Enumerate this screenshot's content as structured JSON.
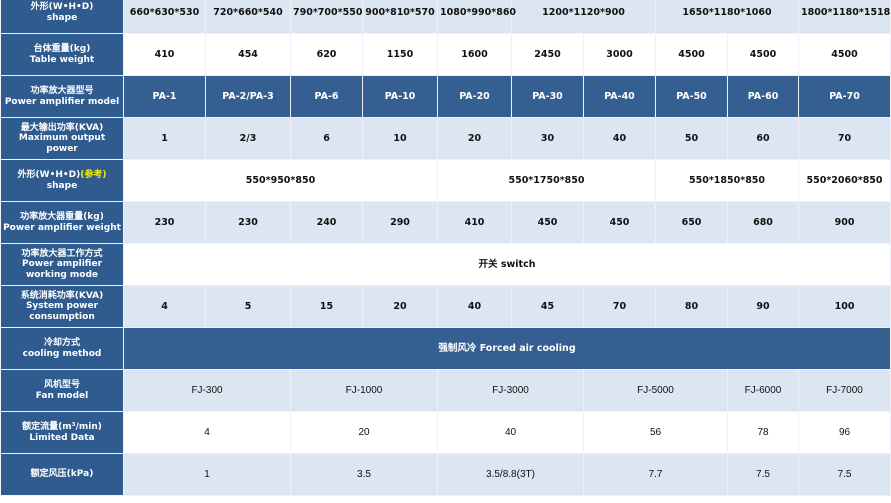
{
  "rows": [
    {
      "label_cn": "外形(W•H•D)",
      "label_en": "shape",
      "style": "light",
      "cells": [
        {
          "text": "660*630*530",
          "span": 1
        },
        {
          "text": "720*660*540",
          "span": 1
        },
        {
          "text": "790*700*550",
          "span": 1
        },
        {
          "text": "900*810*570",
          "span": 1
        },
        {
          "text": "1080*990*860",
          "span": 1
        },
        {
          "text": "1200*1120*900",
          "span": 2
        },
        {
          "text": "1650*1180*1060",
          "span": 2
        },
        {
          "text": "1800*1180*1518",
          "span": 1
        }
      ]
    },
    {
      "label_cn": "台体重量(kg)",
      "label_en": "Table weight",
      "style": "white",
      "cells": [
        {
          "text": "410",
          "span": 1
        },
        {
          "text": "454",
          "span": 1
        },
        {
          "text": "620",
          "span": 1
        },
        {
          "text": "1150",
          "span": 1
        },
        {
          "text": "1600",
          "span": 1
        },
        {
          "text": "2450",
          "span": 1
        },
        {
          "text": "3000",
          "span": 1
        },
        {
          "text": "4500",
          "span": 1
        },
        {
          "text": "4500",
          "span": 1
        },
        {
          "text": "4500",
          "span": 1
        }
      ]
    },
    {
      "label_cn": "功率放大器型号",
      "label_en": "Power amplifier model",
      "style": "dark",
      "cells": [
        {
          "text": "PA-1",
          "span": 1
        },
        {
          "text": "PA-2/PA-3",
          "span": 1
        },
        {
          "text": "PA-6",
          "span": 1
        },
        {
          "text": "PA-10",
          "span": 1
        },
        {
          "text": "PA-20",
          "span": 1
        },
        {
          "text": "PA-30",
          "span": 1
        },
        {
          "text": "PA-40",
          "span": 1
        },
        {
          "text": "PA-50",
          "span": 1
        },
        {
          "text": "PA-60",
          "span": 1
        },
        {
          "text": "PA-70",
          "span": 1
        }
      ]
    },
    {
      "label_cn": "最大输出功率(KVA)",
      "label_en": "Maximum output power",
      "style": "light",
      "cells": [
        {
          "text": "1",
          "span": 1
        },
        {
          "text": "2/3",
          "span": 1
        },
        {
          "text": "6",
          "span": 1
        },
        {
          "text": "10",
          "span": 1
        },
        {
          "text": "20",
          "span": 1
        },
        {
          "text": "30",
          "span": 1
        },
        {
          "text": "40",
          "span": 1
        },
        {
          "text": "50",
          "span": 1
        },
        {
          "text": "60",
          "span": 1
        },
        {
          "text": "70",
          "span": 1
        }
      ]
    },
    {
      "label_cn": "外形(W•H•D)",
      "label_note": "(参考)",
      "label_en": "shape",
      "style": "white",
      "cells": [
        {
          "text": "550*950*850",
          "span": 4
        },
        {
          "text": "550*1750*850",
          "span": 3
        },
        {
          "text": "550*1850*850",
          "span": 2
        },
        {
          "text": "550*2060*850",
          "span": 1
        }
      ]
    },
    {
      "label_cn": "功率放大器重量(kg)",
      "label_en": "Power amplifier weight",
      "style": "light",
      "cells": [
        {
          "text": "230",
          "span": 1
        },
        {
          "text": "230",
          "span": 1
        },
        {
          "text": "240",
          "span": 1
        },
        {
          "text": "290",
          "span": 1
        },
        {
          "text": "410",
          "span": 1
        },
        {
          "text": "450",
          "span": 1
        },
        {
          "text": "450",
          "span": 1
        },
        {
          "text": "650",
          "span": 1
        },
        {
          "text": "680",
          "span": 1
        },
        {
          "text": "900",
          "span": 1
        }
      ]
    },
    {
      "label_cn": "功率放大器工作方式",
      "label_en": "Power amplifier working mode",
      "style": "white",
      "cells": [
        {
          "text": "开关  switch",
          "span": 10
        }
      ]
    },
    {
      "label_cn": "系统消耗功率(KVA)",
      "label_en": "System power consumption",
      "style": "light",
      "cells": [
        {
          "text": "4",
          "span": 1
        },
        {
          "text": "5",
          "span": 1
        },
        {
          "text": "15",
          "span": 1
        },
        {
          "text": "20",
          "span": 1
        },
        {
          "text": "40",
          "span": 1
        },
        {
          "text": "45",
          "span": 1
        },
        {
          "text": "70",
          "span": 1
        },
        {
          "text": "80",
          "span": 1
        },
        {
          "text": "90",
          "span": 1
        },
        {
          "text": "100",
          "span": 1
        }
      ]
    },
    {
      "label_cn": "冷却方式",
      "label_en": "cooling method",
      "style": "dark",
      "cells": [
        {
          "text": "强制风冷  Forced air cooling",
          "span": 10
        }
      ]
    },
    {
      "label_cn": "风机型号",
      "label_en": "Fan model",
      "style": "light fan",
      "cells": [
        {
          "text": "FJ-300",
          "span": 2
        },
        {
          "text": "FJ-1000",
          "span": 2
        },
        {
          "text": "FJ-3000",
          "span": 2
        },
        {
          "text": "FJ-5000",
          "span": 2
        },
        {
          "text": "FJ-6000",
          "span": 1
        },
        {
          "text": "FJ-7000",
          "span": 1
        }
      ]
    },
    {
      "label_cn": "额定流量(m³/min)",
      "label_en": "Limited Data",
      "style": "white fan",
      "cells": [
        {
          "text": "4",
          "span": 2
        },
        {
          "text": "20",
          "span": 2
        },
        {
          "text": "40",
          "span": 2
        },
        {
          "text": "56",
          "span": 2
        },
        {
          "text": "78",
          "span": 1
        },
        {
          "text": "96",
          "span": 1
        }
      ]
    },
    {
      "label_cn": "额定风压(kPa)",
      "label_en": "",
      "style": "light fan",
      "cells": [
        {
          "text": "1",
          "span": 2
        },
        {
          "text": "3.5",
          "span": 2
        },
        {
          "text": "3.5/8.8(3T)",
          "span": 2
        },
        {
          "text": "7.7",
          "span": 2
        },
        {
          "text": "7.5",
          "span": 1
        },
        {
          "text": "7.5",
          "span": 1
        }
      ]
    }
  ],
  "colors": {
    "header": "#2f5b8e",
    "dark_row": "#365f91",
    "light_row": "#dce6f2",
    "note": "#f4f000"
  }
}
